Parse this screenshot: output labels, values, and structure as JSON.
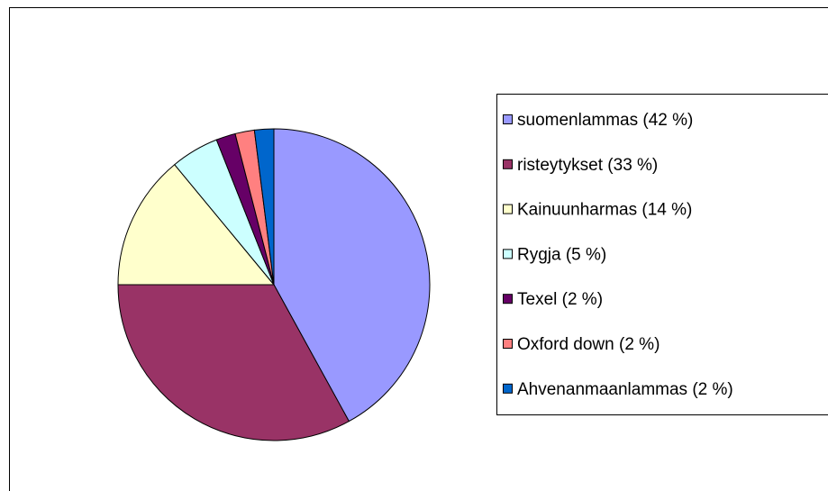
{
  "chart_data": {
    "type": "pie",
    "categories": [
      "suomenlammas (42 %)",
      "risteytykset (33 %)",
      "Kainuunharmas (14 %)",
      "Rygja (5 %)",
      "Texel (2 %)",
      "Oxford down (2 %)",
      "Ahvenanmaanlammas (2 %)"
    ],
    "values": [
      42,
      33,
      14,
      5,
      2,
      2,
      2
    ],
    "colors": [
      "#9999ff",
      "#993366",
      "#ffffcc",
      "#ccffff",
      "#660066",
      "#ff8080",
      "#0066cc"
    ],
    "legend": "right"
  }
}
